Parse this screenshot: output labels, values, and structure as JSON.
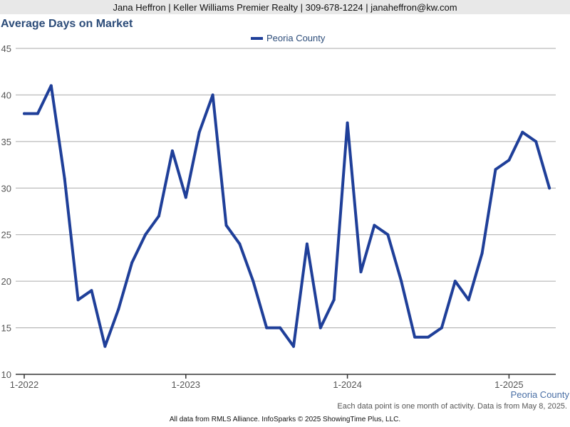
{
  "header": {
    "contact_line": "Jana Heffron | Keller Williams Premier Realty | 309-678-1224 | janaheffron@kw.com"
  },
  "colors": {
    "series": "#1f3f99",
    "grid": "#aaaaaa",
    "title": "#2c4c79"
  },
  "chart_data": {
    "type": "line",
    "title": "Average Days on Market",
    "xlabel": "",
    "ylabel": "",
    "ylim": [
      10,
      45
    ],
    "yticks": [
      10,
      15,
      20,
      25,
      30,
      35,
      40,
      45
    ],
    "xticks": [
      "1-2022",
      "1-2023",
      "1-2024",
      "1-2025"
    ],
    "x_start": "2022-01",
    "grid": "horizontal",
    "legend_position": "top-center",
    "series": [
      {
        "name": "Peoria County",
        "values": [
          38,
          38,
          41,
          31,
          18,
          19,
          13,
          17,
          22,
          25,
          27,
          34,
          29,
          36,
          40,
          26,
          24,
          20,
          15,
          15,
          13,
          24,
          15,
          18,
          37,
          21,
          26,
          25,
          20,
          14,
          14,
          15,
          20,
          18,
          23,
          32,
          33,
          36,
          35,
          30
        ]
      }
    ]
  },
  "footer": {
    "series_label": "Peoria County",
    "note": "Each data point is one month of activity. Data is from May 8, 2025.",
    "credit": "All data from RMLS Alliance. InfoSparks © 2025 ShowingTime Plus, LLC."
  }
}
